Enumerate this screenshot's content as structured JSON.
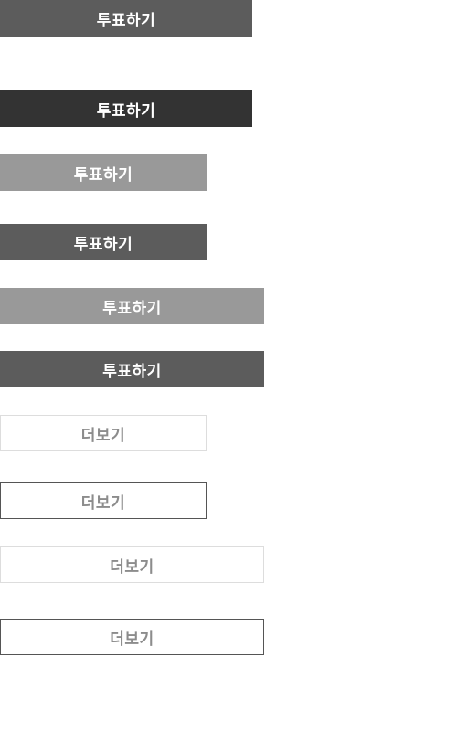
{
  "buttons": {
    "vote_1": "투표하기",
    "vote_2": "투표하기",
    "vote_3": "투표하기",
    "vote_4": "투표하기",
    "vote_5": "투표하기",
    "vote_6": "투표하기",
    "more_1": "더보기",
    "more_2": "더보기",
    "more_3": "더보기",
    "more_4": "더보기"
  },
  "colors": {
    "dark_gray": "#5c5c5c",
    "darkest_gray": "#333333",
    "light_gray": "#999999",
    "border_light": "#dddddd",
    "border_dark": "#555555",
    "more_text": "#8c8c8c",
    "vote_text": "#ffffff"
  }
}
